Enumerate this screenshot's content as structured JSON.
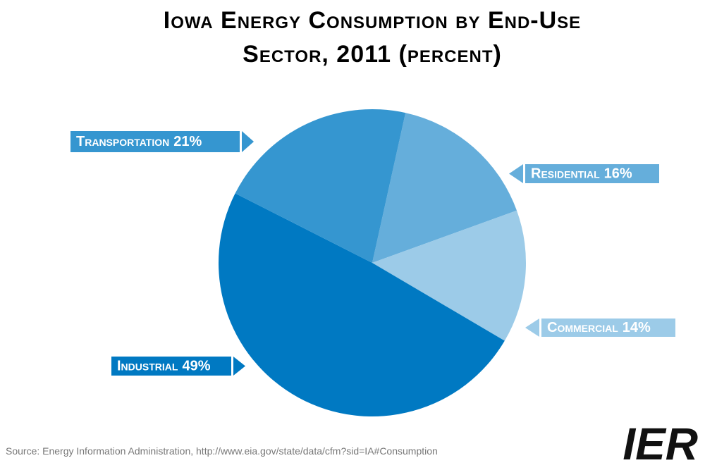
{
  "chart_data": {
    "type": "pie",
    "title": "Iowa Energy Consumption by End-Use",
    "subtitle": "Sector, 2011 (percent)",
    "categories": [
      "Residential",
      "Commercial",
      "Industrial",
      "Transportation"
    ],
    "values": [
      16,
      14,
      49,
      21
    ],
    "value_labels": [
      "16%",
      "14%",
      "49%",
      "21%"
    ],
    "colors": [
      "#65aedb",
      "#9ccbe8",
      "#0079c2",
      "#3596d0"
    ],
    "source": "Source: Energy Information Administration, http://www.eia.gov/state/data/cfm?sid=IA#Consumption",
    "logo": "IER"
  }
}
